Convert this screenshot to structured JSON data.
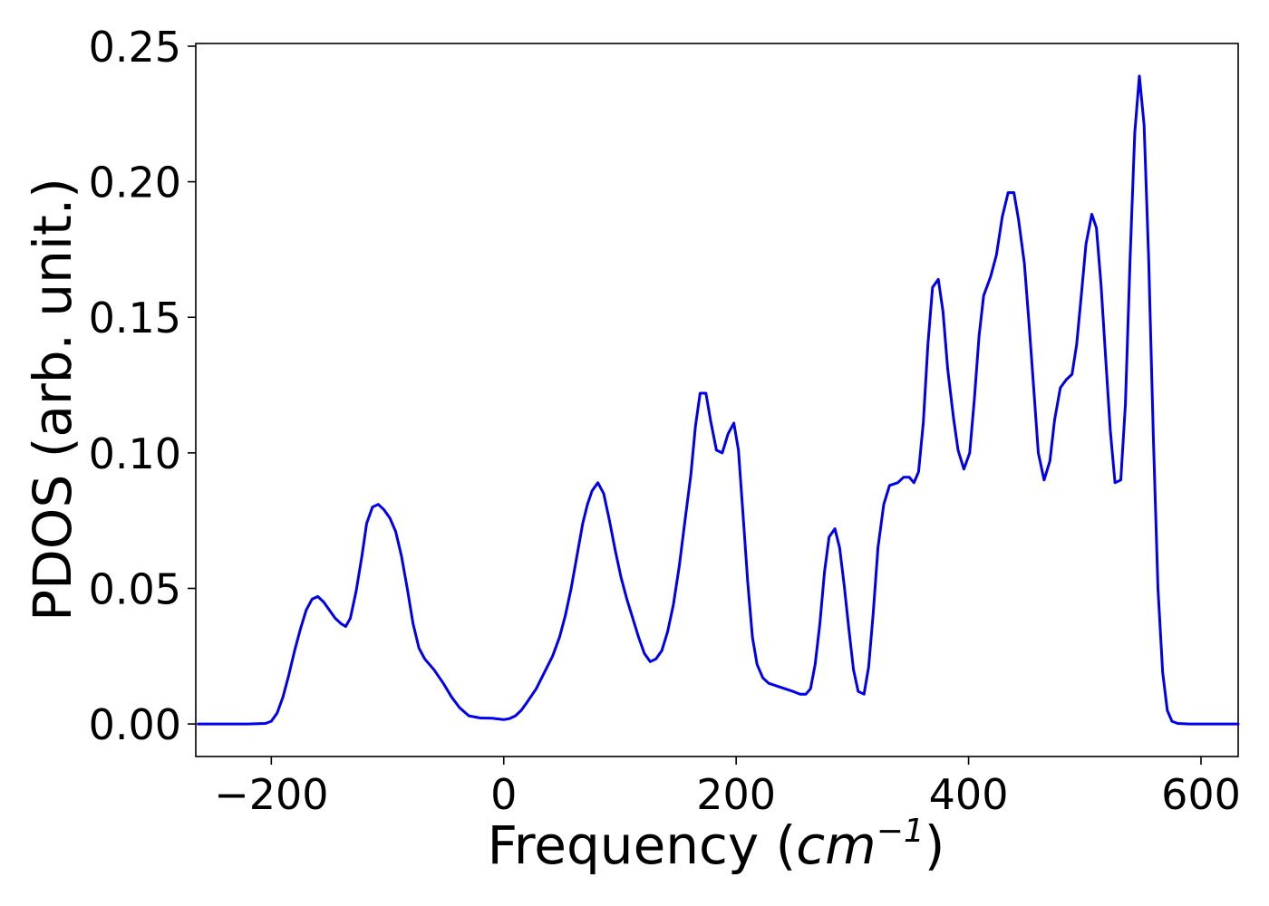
{
  "chart_data": {
    "type": "line",
    "title": "",
    "xlabel_main": "Frequency (",
    "xlabel_math": "cm",
    "xlabel_sup": "−1",
    "xlabel_close": ")",
    "ylabel": "PDOS (arb. unit.)",
    "xlim": [
      -265,
      632
    ],
    "ylim": [
      -0.012,
      0.251
    ],
    "x_ticks": [
      {
        "value": -200,
        "label": "−200"
      },
      {
        "value": 0,
        "label": "0"
      },
      {
        "value": 200,
        "label": "200"
      },
      {
        "value": 400,
        "label": "400"
      },
      {
        "value": 600,
        "label": "600"
      }
    ],
    "y_ticks": [
      {
        "value": 0.0,
        "label": "0.00"
      },
      {
        "value": 0.05,
        "label": "0.05"
      },
      {
        "value": 0.1,
        "label": "0.10"
      },
      {
        "value": 0.15,
        "label": "0.15"
      },
      {
        "value": 0.2,
        "label": "0.20"
      },
      {
        "value": 0.25,
        "label": "0.25"
      }
    ],
    "grid": false,
    "line_color": "#0000ee",
    "series": [
      {
        "points": [
          [
            -263,
            0.0
          ],
          [
            -220,
            0.0
          ],
          [
            -205,
            0.0002
          ],
          [
            -200,
            0.001
          ],
          [
            -195,
            0.004
          ],
          [
            -190,
            0.01
          ],
          [
            -185,
            0.018
          ],
          [
            -180,
            0.027
          ],
          [
            -175,
            0.035
          ],
          [
            -170,
            0.042
          ],
          [
            -165,
            0.046
          ],
          [
            -160,
            0.047
          ],
          [
            -155,
            0.045
          ],
          [
            -150,
            0.042
          ],
          [
            -145,
            0.039
          ],
          [
            -140,
            0.037
          ],
          [
            -136,
            0.036
          ],
          [
            -132,
            0.039
          ],
          [
            -127,
            0.049
          ],
          [
            -122,
            0.062
          ],
          [
            -118,
            0.074
          ],
          [
            -113,
            0.08
          ],
          [
            -108,
            0.081
          ],
          [
            -103,
            0.079
          ],
          [
            -98,
            0.076
          ],
          [
            -93,
            0.071
          ],
          [
            -88,
            0.062
          ],
          [
            -83,
            0.05
          ],
          [
            -78,
            0.037
          ],
          [
            -73,
            0.028
          ],
          [
            -68,
            0.024
          ],
          [
            -60,
            0.02
          ],
          [
            -52,
            0.015
          ],
          [
            -45,
            0.01
          ],
          [
            -38,
            0.006
          ],
          [
            -30,
            0.003
          ],
          [
            -20,
            0.0022
          ],
          [
            -10,
            0.0021
          ],
          [
            0,
            0.0016
          ],
          [
            5,
            0.002
          ],
          [
            10,
            0.003
          ],
          [
            15,
            0.005
          ],
          [
            20,
            0.008
          ],
          [
            28,
            0.013
          ],
          [
            35,
            0.019
          ],
          [
            42,
            0.025
          ],
          [
            48,
            0.032
          ],
          [
            53,
            0.04
          ],
          [
            58,
            0.05
          ],
          [
            63,
            0.062
          ],
          [
            68,
            0.074
          ],
          [
            72,
            0.081
          ],
          [
            76,
            0.086
          ],
          [
            81,
            0.089
          ],
          [
            86,
            0.085
          ],
          [
            91,
            0.075
          ],
          [
            96,
            0.064
          ],
          [
            101,
            0.054
          ],
          [
            106,
            0.046
          ],
          [
            111,
            0.039
          ],
          [
            116,
            0.032
          ],
          [
            121,
            0.026
          ],
          [
            126,
            0.023
          ],
          [
            131,
            0.024
          ],
          [
            136,
            0.027
          ],
          [
            141,
            0.034
          ],
          [
            146,
            0.044
          ],
          [
            151,
            0.058
          ],
          [
            156,
            0.075
          ],
          [
            161,
            0.092
          ],
          [
            165,
            0.11
          ],
          [
            169,
            0.122
          ],
          [
            174,
            0.122
          ],
          [
            178,
            0.112
          ],
          [
            183,
            0.101
          ],
          [
            188,
            0.1
          ],
          [
            193,
            0.107
          ],
          [
            198,
            0.111
          ],
          [
            202,
            0.101
          ],
          [
            206,
            0.077
          ],
          [
            210,
            0.052
          ],
          [
            214,
            0.032
          ],
          [
            218,
            0.022
          ],
          [
            223,
            0.017
          ],
          [
            228,
            0.015
          ],
          [
            235,
            0.014
          ],
          [
            242,
            0.013
          ],
          [
            249,
            0.012
          ],
          [
            255,
            0.011
          ],
          [
            260,
            0.011
          ],
          [
            264,
            0.013
          ],
          [
            268,
            0.022
          ],
          [
            272,
            0.037
          ],
          [
            276,
            0.056
          ],
          [
            280,
            0.069
          ],
          [
            285,
            0.072
          ],
          [
            289,
            0.065
          ],
          [
            293,
            0.051
          ],
          [
            297,
            0.035
          ],
          [
            301,
            0.02
          ],
          [
            305,
            0.012
          ],
          [
            310,
            0.011
          ],
          [
            314,
            0.021
          ],
          [
            318,
            0.041
          ],
          [
            322,
            0.065
          ],
          [
            327,
            0.081
          ],
          [
            332,
            0.088
          ],
          [
            339,
            0.089
          ],
          [
            344,
            0.091
          ],
          [
            349,
            0.091
          ],
          [
            353,
            0.089
          ],
          [
            357,
            0.093
          ],
          [
            361,
            0.111
          ],
          [
            365,
            0.14
          ],
          [
            369,
            0.161
          ],
          [
            374,
            0.164
          ],
          [
            378,
            0.152
          ],
          [
            382,
            0.131
          ],
          [
            387,
            0.113
          ],
          [
            391,
            0.101
          ],
          [
            396,
            0.094
          ],
          [
            401,
            0.1
          ],
          [
            405,
            0.12
          ],
          [
            409,
            0.143
          ],
          [
            413,
            0.158
          ],
          [
            419,
            0.165
          ],
          [
            424,
            0.173
          ],
          [
            429,
            0.187
          ],
          [
            434,
            0.196
          ],
          [
            439,
            0.196
          ],
          [
            443,
            0.186
          ],
          [
            448,
            0.17
          ],
          [
            452,
            0.148
          ],
          [
            456,
            0.124
          ],
          [
            460,
            0.1
          ],
          [
            465,
            0.09
          ],
          [
            470,
            0.097
          ],
          [
            474,
            0.112
          ],
          [
            479,
            0.124
          ],
          [
            484,
            0.127
          ],
          [
            489,
            0.129
          ],
          [
            493,
            0.14
          ],
          [
            497,
            0.158
          ],
          [
            501,
            0.177
          ],
          [
            506,
            0.188
          ],
          [
            510,
            0.183
          ],
          [
            514,
            0.162
          ],
          [
            518,
            0.135
          ],
          [
            522,
            0.108
          ],
          [
            526,
            0.089
          ],
          [
            531,
            0.09
          ],
          [
            535,
            0.118
          ],
          [
            539,
            0.172
          ],
          [
            543,
            0.218
          ],
          [
            547,
            0.239
          ],
          [
            551,
            0.221
          ],
          [
            555,
            0.171
          ],
          [
            559,
            0.106
          ],
          [
            563,
            0.05
          ],
          [
            567,
            0.019
          ],
          [
            571,
            0.005
          ],
          [
            575,
            0.001
          ],
          [
            580,
            0.0002
          ],
          [
            590,
            0.0
          ],
          [
            632,
            0.0
          ]
        ]
      }
    ]
  }
}
